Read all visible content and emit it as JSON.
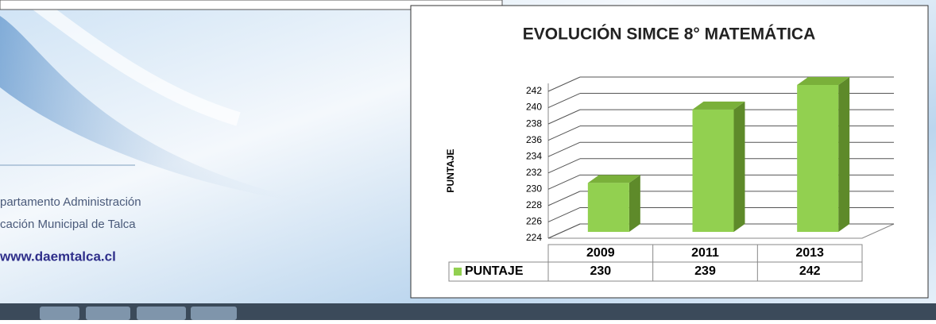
{
  "background": {
    "lines": [
      "partamento Administración",
      "cación Municipal de Talca"
    ],
    "url": "www.daemtalca.cl"
  },
  "chart_data": {
    "type": "bar3d",
    "title": "EVOLUCIÓN SIMCE 8° MATEMÁTICA",
    "ylabel": "PUNTAJE",
    "categories": [
      "2009",
      "2011",
      "2013"
    ],
    "series": [
      {
        "name": "PUNTAJE",
        "color": "#92d050",
        "values": [
          230,
          239,
          242
        ]
      }
    ],
    "ylim": [
      224,
      242
    ],
    "yticks": [
      224,
      226,
      228,
      230,
      232,
      234,
      236,
      238,
      240,
      242
    ],
    "grid": true
  }
}
